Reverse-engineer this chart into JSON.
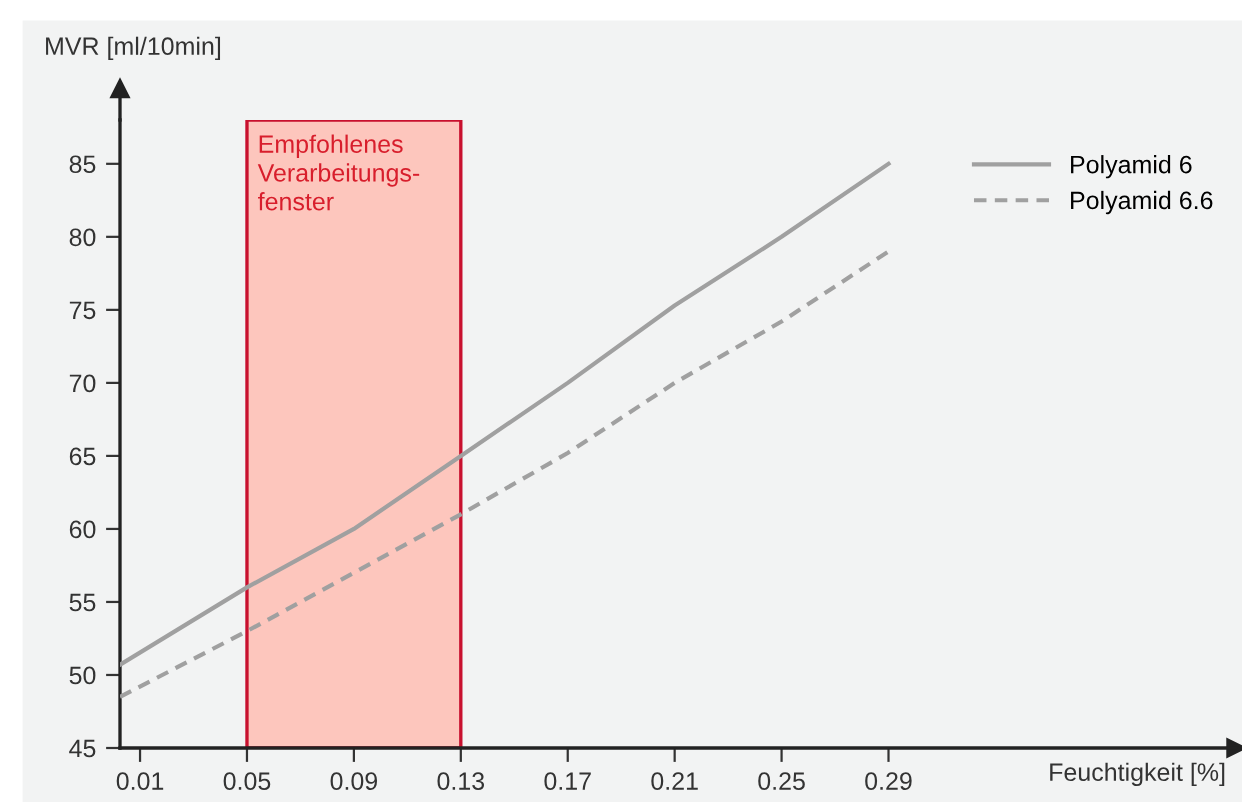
{
  "chart_data": {
    "type": "line",
    "xlabel": "Feuchtigkeit [%]",
    "ylabel": "MVR [ml/10min]",
    "xlim": [
      0.0025,
      0.42
    ],
    "ylim": [
      45,
      88
    ],
    "xticks": [
      0.01,
      0.05,
      0.09,
      0.13,
      0.17,
      0.21,
      0.25,
      0.29
    ],
    "yticks": [
      45,
      50,
      55,
      60,
      65,
      70,
      75,
      80,
      85
    ],
    "grid": false,
    "legend": "top right",
    "marker": "none",
    "series": [
      {
        "name": "Polyamid 6",
        "color": "#a0a0a0",
        "line_style": "solid",
        "x": [
          0.0025,
          0.05,
          0.09,
          0.13,
          0.17,
          0.21,
          0.25,
          0.29
        ],
        "values": [
          50.7,
          56,
          60,
          65,
          70,
          75.3,
          80,
          85
        ]
      },
      {
        "name": "Polyamid 6.6",
        "color": "#a0a0a0",
        "line_style": "dashed",
        "x": [
          0.0025,
          0.05,
          0.09,
          0.13,
          0.17,
          0.21,
          0.25,
          0.29
        ],
        "values": [
          48.5,
          53,
          57,
          61,
          65.2,
          70,
          74.2,
          79
        ]
      }
    ],
    "bands": [
      {
        "axis": "x",
        "from": 0.05,
        "to": 0.13,
        "label": "Empfohlenes\nVerarbeitungs-\nfenster",
        "color": "#fdc6bd"
      }
    ]
  }
}
